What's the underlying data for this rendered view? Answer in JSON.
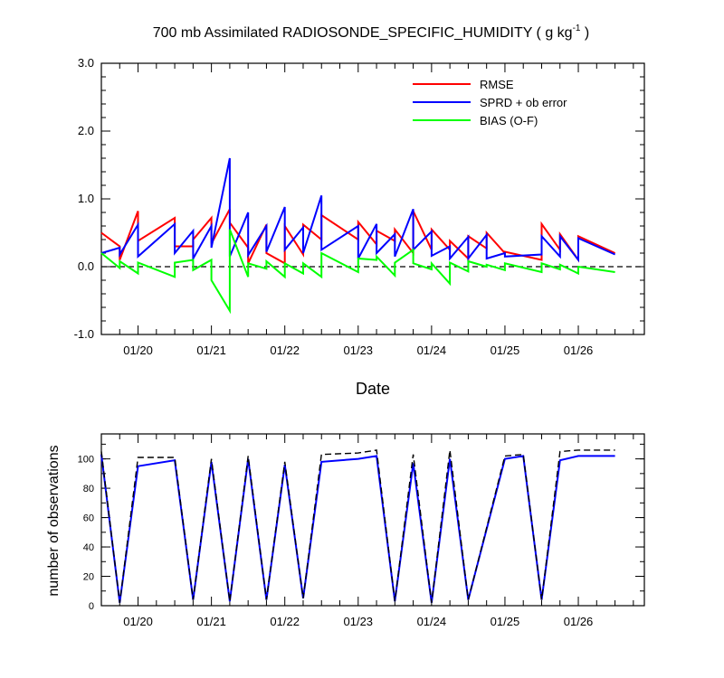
{
  "chart_data": [
    {
      "type": "line",
      "title": "700 mb Assimilated RADIOSONDE_SPECIFIC_HUMIDITY ( g kg",
      "title_superscript": "-1",
      "title_suffix": " )",
      "xlabel": "Date",
      "ylabel": "",
      "xlim": [
        0,
        7.4
      ],
      "ylim": [
        -1.0,
        3.0
      ],
      "x_tick_labels": [
        "01/20",
        "01/21",
        "01/22",
        "01/23",
        "01/24",
        "01/25",
        "01/26"
      ],
      "x_tick_positions": [
        0.5,
        1.5,
        2.5,
        3.5,
        4.5,
        5.5,
        6.5
      ],
      "y_tick_labels": [
        "-1.0",
        "0.0",
        "1.0",
        "2.0",
        "3.0"
      ],
      "y_tick_values": [
        -1.0,
        0.0,
        1.0,
        2.0,
        3.0
      ],
      "grid": false,
      "legend_placement": "top-right",
      "zero_line": {
        "value": 0.0,
        "style": "dashed"
      },
      "series": [
        {
          "name": "RMSE",
          "color": "#ff0000",
          "x": [
            0.0,
            0.25,
            0.25,
            0.5,
            0.5,
            1.0,
            1.0,
            1.25,
            1.25,
            1.5,
            1.5,
            1.75,
            1.75,
            2.0,
            2.0,
            2.25,
            2.25,
            2.5,
            2.5,
            2.75,
            2.75,
            3.0,
            3.0,
            3.5,
            3.5,
            3.75,
            3.75,
            4.0,
            4.0,
            4.25,
            4.25,
            4.5,
            4.5,
            4.75,
            4.75,
            5.0,
            5.0,
            5.25,
            5.25,
            5.5,
            5.5,
            6.0,
            6.0,
            6.25,
            6.25,
            6.5,
            6.5,
            7.0
          ],
          "values": [
            0.5,
            0.3,
            0.1,
            0.82,
            0.38,
            0.72,
            0.3,
            0.3,
            0.4,
            0.72,
            0.34,
            0.85,
            0.65,
            0.28,
            0.05,
            0.62,
            0.2,
            0.05,
            0.6,
            0.18,
            0.62,
            0.4,
            0.76,
            0.4,
            0.66,
            0.33,
            0.53,
            0.38,
            0.55,
            0.2,
            0.82,
            0.25,
            0.55,
            0.25,
            0.38,
            0.12,
            0.45,
            0.27,
            0.5,
            0.2,
            0.22,
            0.1,
            0.63,
            0.25,
            0.48,
            0.1,
            0.45,
            0.2
          ]
        },
        {
          "name": "SPRD + ob error",
          "color": "#0000ff",
          "x": [
            0.0,
            0.25,
            0.25,
            0.5,
            0.5,
            1.0,
            1.0,
            1.25,
            1.25,
            1.5,
            1.5,
            1.75,
            1.75,
            2.0,
            2.0,
            2.25,
            2.25,
            2.5,
            2.5,
            2.75,
            2.75,
            3.0,
            3.0,
            3.5,
            3.5,
            3.75,
            3.75,
            4.0,
            4.0,
            4.25,
            4.25,
            4.5,
            4.5,
            4.75,
            4.75,
            5.0,
            5.0,
            5.25,
            5.25,
            5.5,
            5.5,
            6.0,
            6.0,
            6.25,
            6.25,
            6.5,
            6.5,
            7.0
          ],
          "values": [
            0.2,
            0.28,
            0.18,
            0.62,
            0.15,
            0.63,
            0.2,
            0.53,
            0.12,
            0.6,
            0.28,
            1.6,
            0.15,
            0.8,
            0.17,
            0.6,
            0.22,
            0.88,
            0.25,
            0.58,
            0.2,
            1.05,
            0.25,
            0.6,
            0.12,
            0.63,
            0.2,
            0.48,
            0.15,
            0.85,
            0.25,
            0.52,
            0.16,
            0.3,
            0.12,
            0.44,
            0.12,
            0.47,
            0.12,
            0.2,
            0.15,
            0.18,
            0.45,
            0.15,
            0.45,
            0.1,
            0.42,
            0.18
          ]
        },
        {
          "name": "BIAS (O-F)",
          "color": "#00ff00",
          "x": [
            0.0,
            0.25,
            0.25,
            0.5,
            0.5,
            1.0,
            1.0,
            1.25,
            1.25,
            1.5,
            1.5,
            1.75,
            1.75,
            2.0,
            2.0,
            2.25,
            2.25,
            2.5,
            2.5,
            2.75,
            2.75,
            3.0,
            3.0,
            3.5,
            3.5,
            3.75,
            3.75,
            4.0,
            4.0,
            4.25,
            4.25,
            4.5,
            4.5,
            4.75,
            4.75,
            5.0,
            5.0,
            5.25,
            5.25,
            5.5,
            5.5,
            6.0,
            6.0,
            6.25,
            6.25,
            6.5,
            6.5,
            7.0
          ],
          "values": [
            0.2,
            -0.02,
            0.08,
            -0.1,
            0.06,
            -0.15,
            0.06,
            0.1,
            -0.05,
            0.1,
            -0.2,
            -0.65,
            0.55,
            -0.15,
            0.05,
            -0.03,
            0.08,
            -0.15,
            0.05,
            -0.1,
            0.05,
            -0.15,
            0.2,
            -0.08,
            0.12,
            0.1,
            0.15,
            -0.13,
            0.06,
            0.25,
            0.05,
            -0.04,
            0.05,
            -0.25,
            0.06,
            -0.07,
            0.08,
            0.0,
            0.03,
            -0.05,
            0.05,
            -0.08,
            0.05,
            -0.04,
            0.03,
            -0.1,
            0.0,
            -0.08
          ]
        }
      ]
    },
    {
      "type": "line",
      "title": "",
      "xlabel": "",
      "ylabel": "number of observations",
      "xlim": [
        0,
        7.4
      ],
      "ylim": [
        0,
        117
      ],
      "x_tick_labels": [
        "01/20",
        "01/21",
        "01/22",
        "01/23",
        "01/24",
        "01/25",
        "01/26"
      ],
      "x_tick_positions": [
        0.5,
        1.5,
        2.5,
        3.5,
        4.5,
        5.5,
        6.5
      ],
      "y_tick_labels": [
        "0",
        "20",
        "40",
        "60",
        "80",
        "100"
      ],
      "y_tick_values": [
        0,
        20,
        40,
        60,
        80,
        100
      ],
      "grid": false,
      "series": [
        {
          "style": "solid",
          "color": "#0000ff",
          "x": [
            0.0,
            0.25,
            0.5,
            1.0,
            1.25,
            1.5,
            1.75,
            2.0,
            2.25,
            2.5,
            2.75,
            3.0,
            3.5,
            3.75,
            4.0,
            4.25,
            4.5,
            4.75,
            5.0,
            5.5,
            5.75,
            6.0,
            6.25,
            6.5,
            7.0
          ],
          "values": [
            103,
            2,
            95,
            99,
            4,
            98,
            3,
            100,
            4,
            96,
            5,
            98,
            100,
            102,
            3,
            97,
            2,
            100,
            4,
            100,
            102,
            4,
            99,
            102,
            102
          ]
        },
        {
          "style": "dashed",
          "color": "#000000",
          "x": [
            0.0,
            0.25,
            0.5,
            1.0,
            1.25,
            1.5,
            1.75,
            2.0,
            2.25,
            2.5,
            2.75,
            3.0,
            3.5,
            3.75,
            4.0,
            4.25,
            4.5,
            4.75,
            5.0,
            5.5,
            5.75,
            6.0,
            6.25,
            6.5,
            7.0
          ],
          "values": [
            105,
            2,
            101,
            101,
            4,
            100,
            3,
            102,
            4,
            98,
            5,
            103,
            104,
            106,
            3,
            103,
            2,
            106,
            4,
            102,
            103,
            4,
            105,
            106,
            106
          ]
        }
      ]
    }
  ]
}
